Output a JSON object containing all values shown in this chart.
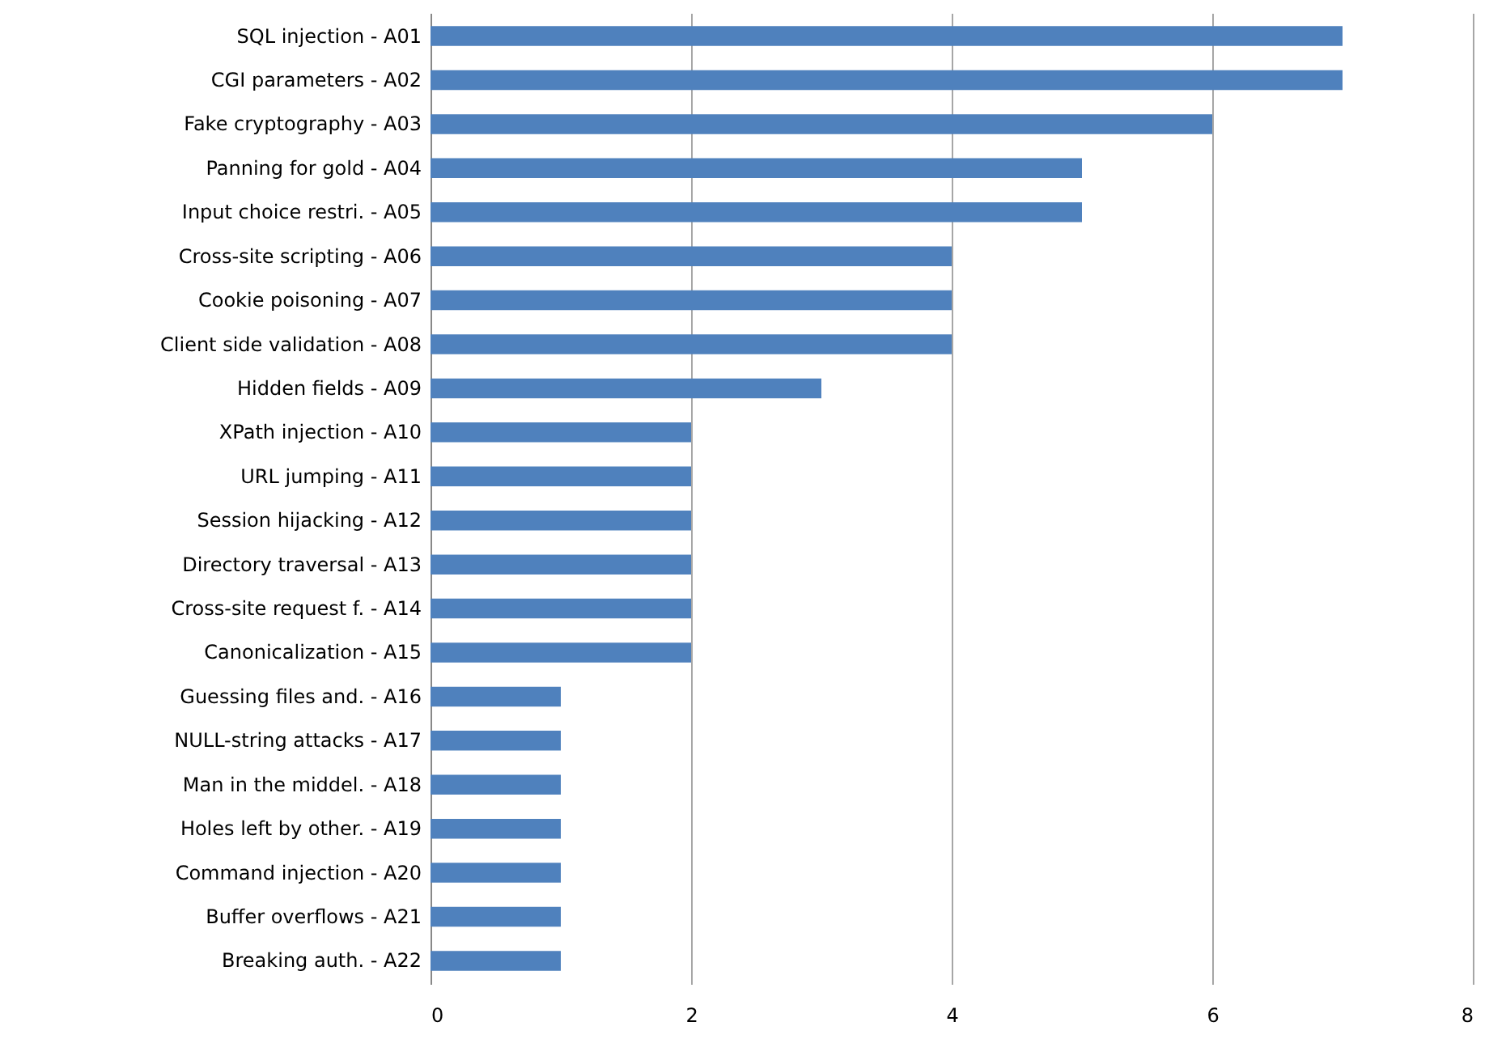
{
  "chart_data": {
    "type": "bar",
    "orientation": "horizontal",
    "categories": [
      "SQL injection - A01",
      "CGI parameters - A02",
      "Fake cryptography - A03",
      "Panning for gold - A04",
      "Input choice restri. - A05",
      "Cross-site scripting - A06",
      "Cookie poisoning - A07",
      "Client side validation - A08",
      "Hidden fields - A09",
      "XPath injection - A10",
      "URL jumping - A11",
      "Session hijacking - A12",
      "Directory traversal - A13",
      "Cross-site request f. - A14",
      "Canonicalization - A15",
      "Guessing files and. - A16",
      "NULL-string attacks - A17",
      "Man in the middel. - A18",
      "Holes left by other. - A19",
      "Command injection - A20",
      "Buffer overflows - A21",
      "Breaking auth. - A22"
    ],
    "values": [
      7,
      7,
      6,
      5,
      5,
      4,
      4,
      4,
      3,
      2,
      2,
      2,
      2,
      2,
      2,
      1,
      1,
      1,
      1,
      1,
      1,
      1
    ],
    "color": "#4f81bd",
    "xlim": [
      0,
      8
    ],
    "xticks": [
      0,
      2,
      4,
      6,
      8
    ],
    "grid": "x"
  }
}
